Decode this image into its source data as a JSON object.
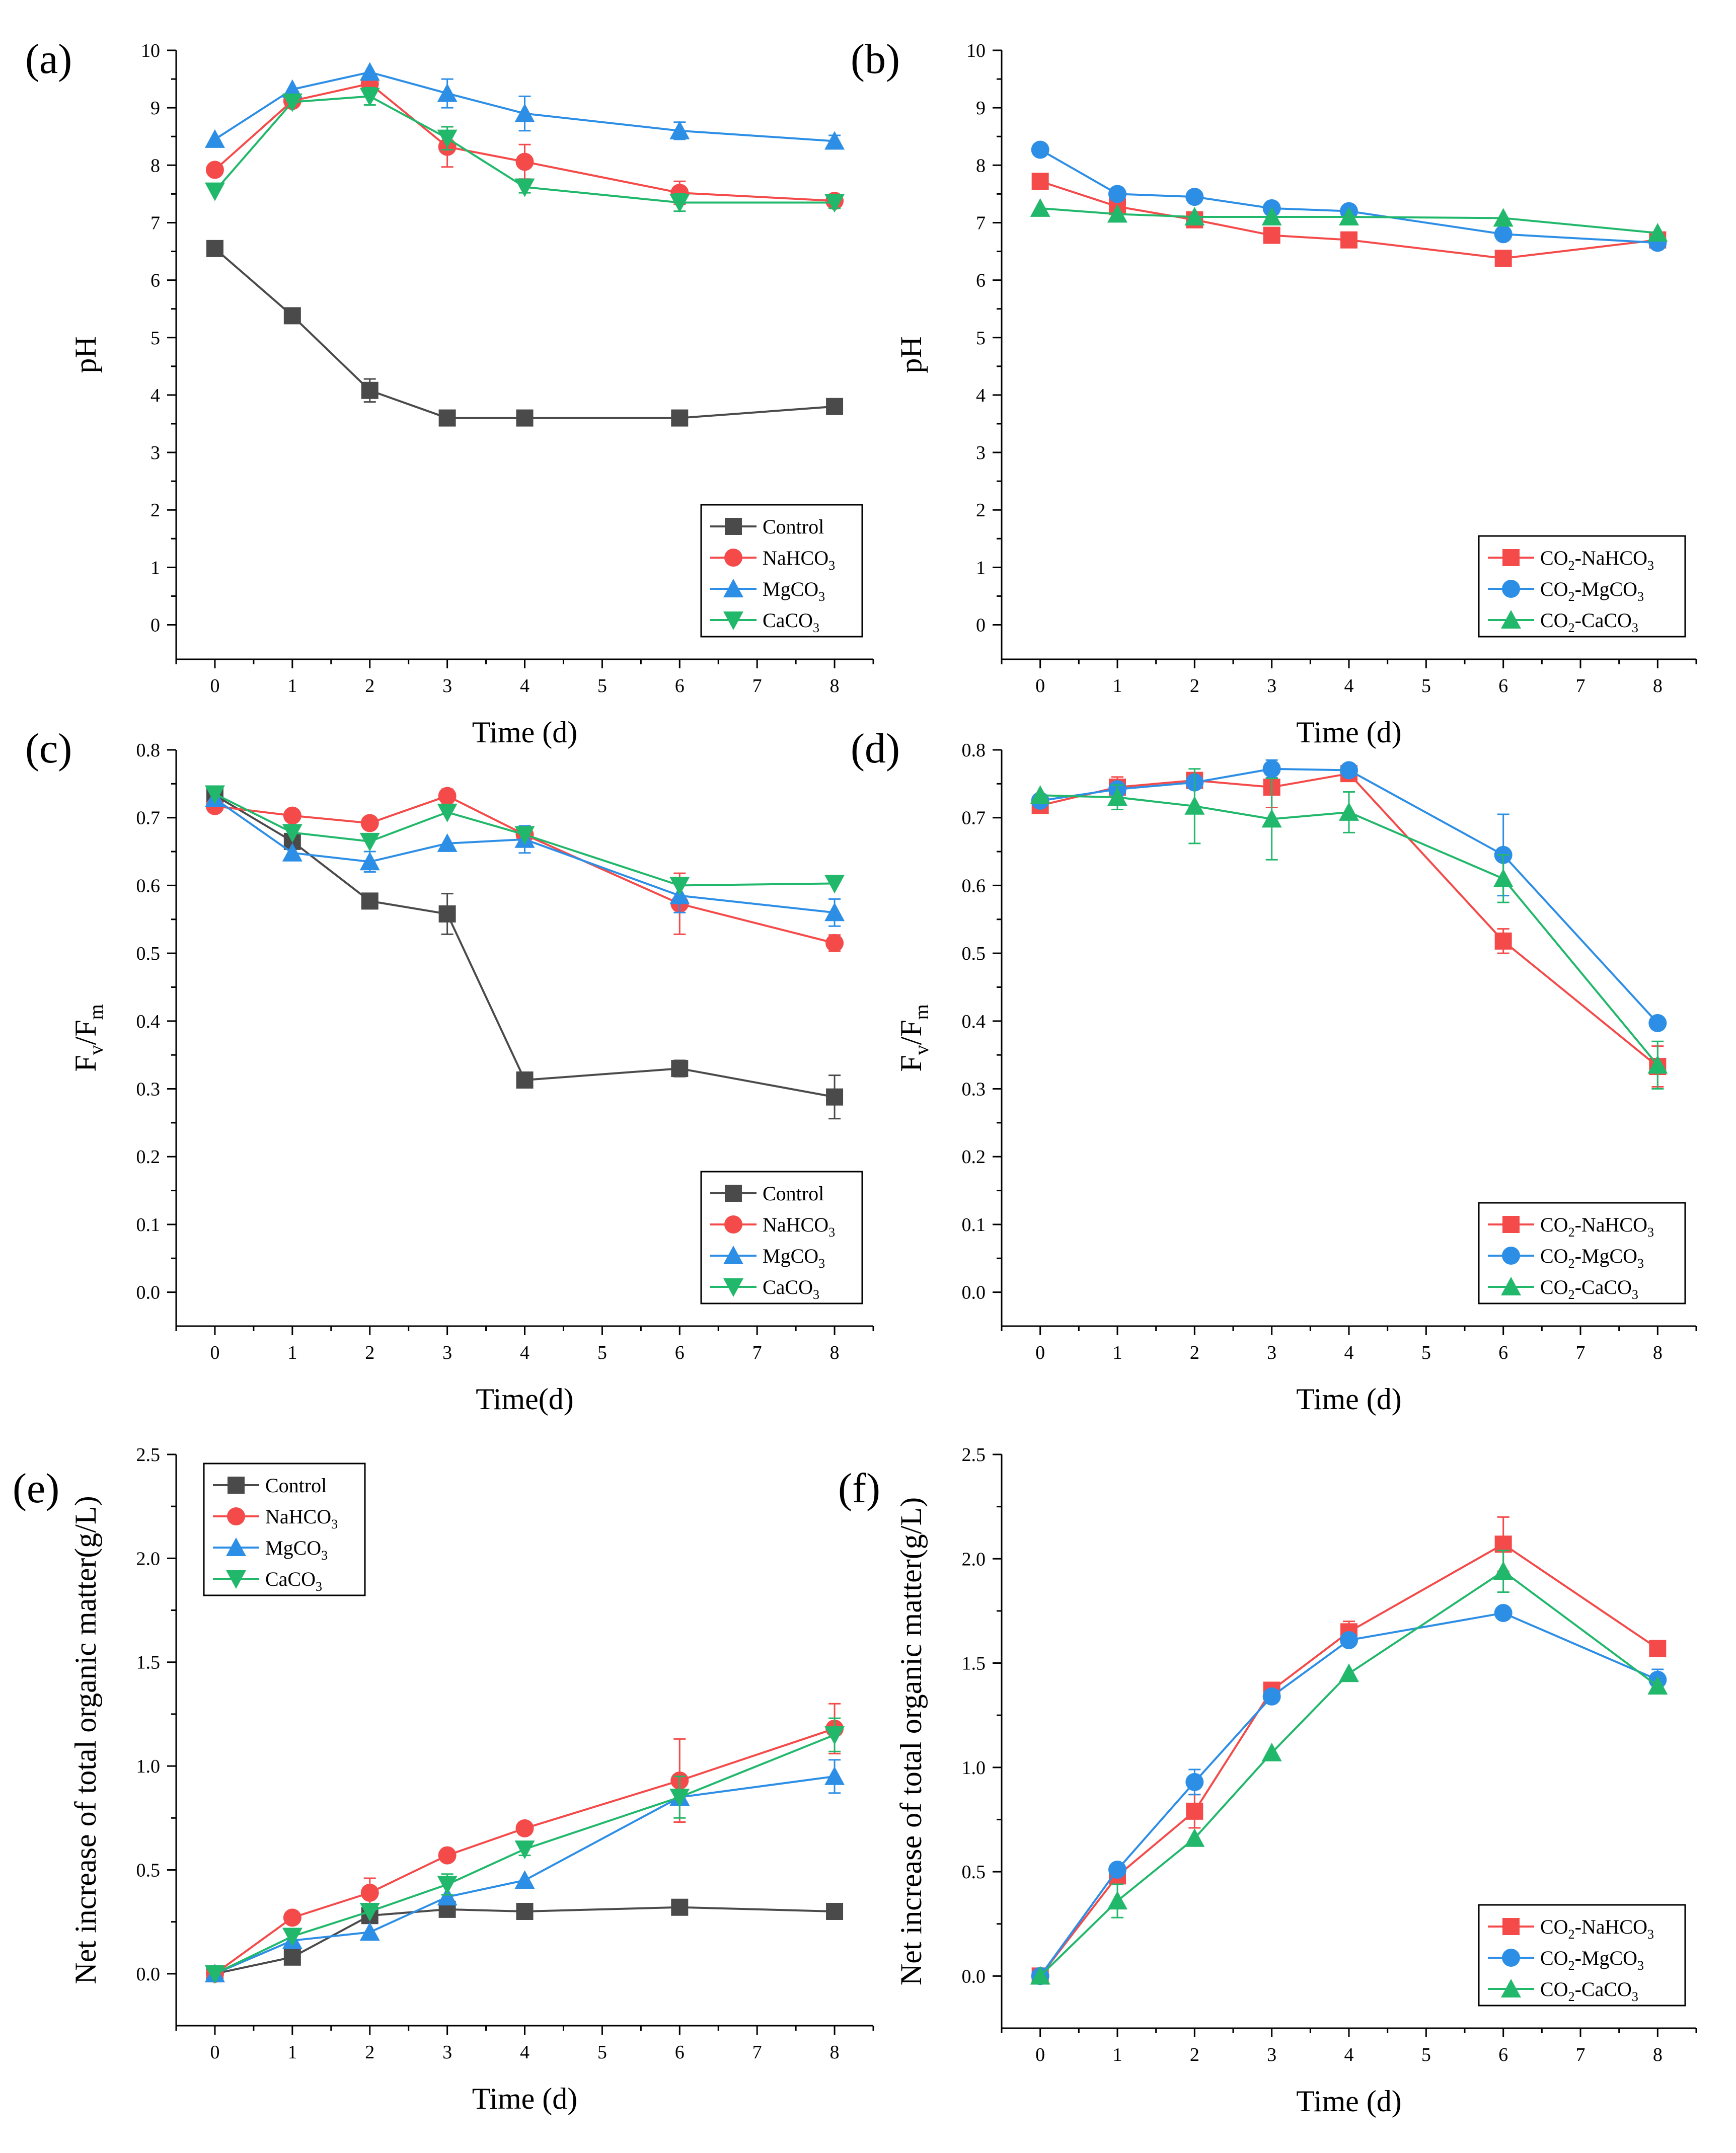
{
  "figure": {
    "colors": {
      "black": "#4a4a4a",
      "red": "#f44a4a",
      "blue": "#2d8ee6",
      "green": "#22b86b"
    }
  },
  "chart_data": [
    {
      "id": "a",
      "panel_label": "(a)",
      "type": "line",
      "xlabel": "Time (d)",
      "ylabel": "pH",
      "xlim": [
        -0.5,
        8.5
      ],
      "ylim": [
        -0.6,
        10
      ],
      "yticks": [
        0,
        1,
        2,
        3,
        4,
        5,
        6,
        7,
        8,
        9,
        10
      ],
      "ytick_decimals": 0,
      "xticks": [
        0,
        1,
        2,
        3,
        4,
        5,
        6,
        7,
        8
      ],
      "legend_position": "bottom-right",
      "x": [
        0,
        1,
        2,
        3,
        4,
        6,
        8
      ],
      "series": [
        {
          "name": "Control",
          "sub": "",
          "color": "#4a4a4a",
          "marker": "square",
          "values": [
            6.55,
            5.38,
            4.08,
            3.6,
            3.6,
            3.6,
            3.8
          ],
          "errors": [
            0,
            0,
            0.2,
            0,
            0,
            0,
            0
          ]
        },
        {
          "name": "NaHCO",
          "sub": "3",
          "color": "#f44a4a",
          "marker": "circle",
          "values": [
            7.92,
            9.12,
            9.42,
            8.32,
            8.06,
            7.52,
            7.38
          ],
          "errors": [
            0,
            0,
            0.15,
            0.35,
            0.3,
            0.2,
            0.1
          ]
        },
        {
          "name": "MgCO",
          "sub": "3",
          "color": "#2d8ee6",
          "marker": "triangle-up",
          "values": [
            8.45,
            9.32,
            9.62,
            9.25,
            8.9,
            8.6,
            8.42
          ],
          "errors": [
            0,
            0,
            0,
            0.25,
            0.3,
            0.15,
            0.1
          ]
        },
        {
          "name": "CaCO",
          "sub": "3",
          "color": "#22b86b",
          "marker": "triangle-down",
          "values": [
            7.55,
            9.1,
            9.2,
            8.47,
            7.62,
            7.35,
            7.35
          ],
          "errors": [
            0,
            0,
            0.15,
            0.2,
            0.1,
            0.15,
            0.1
          ]
        }
      ]
    },
    {
      "id": "b",
      "panel_label": "(b)",
      "type": "line",
      "xlabel": "Time (d)",
      "ylabel": "pH",
      "xlim": [
        -0.5,
        8.5
      ],
      "ylim": [
        -0.6,
        10
      ],
      "yticks": [
        0,
        1,
        2,
        3,
        4,
        5,
        6,
        7,
        8,
        9,
        10
      ],
      "ytick_decimals": 0,
      "xticks": [
        0,
        1,
        2,
        3,
        4,
        5,
        6,
        7,
        8
      ],
      "legend_position": "bottom-right",
      "x": [
        0,
        1,
        2,
        3,
        4,
        6,
        8
      ],
      "series": [
        {
          "name": "CO",
          "sub": "2",
          "name2": "-NaHCO",
          "sub2": "3",
          "color": "#f44a4a",
          "marker": "square",
          "values": [
            7.72,
            7.28,
            7.05,
            6.78,
            6.7,
            6.38,
            6.7
          ],
          "errors": [
            0,
            0,
            0,
            0,
            0,
            0,
            0
          ]
        },
        {
          "name": "CO",
          "sub": "2",
          "name2": "-MgCO",
          "sub2": "3",
          "color": "#2d8ee6",
          "marker": "circle",
          "values": [
            8.27,
            7.5,
            7.45,
            7.25,
            7.2,
            6.8,
            6.65
          ],
          "errors": [
            0,
            0,
            0,
            0,
            0,
            0,
            0
          ]
        },
        {
          "name": "CO",
          "sub": "2",
          "name2": "-CaCO",
          "sub2": "3",
          "color": "#22b86b",
          "marker": "triangle-up",
          "values": [
            7.25,
            7.15,
            7.1,
            7.1,
            7.1,
            7.08,
            6.82
          ],
          "errors": [
            0,
            0,
            0,
            0,
            0,
            0,
            0
          ]
        }
      ]
    },
    {
      "id": "c",
      "panel_label": "(c)",
      "type": "line",
      "xlabel": "Time(d)",
      "ylabel": "F",
      "ylabel_sub": "v",
      "ylabel2": "/F",
      "ylabel_sub2": "m",
      "xlim": [
        -0.5,
        8.5
      ],
      "ylim": [
        -0.05,
        0.8
      ],
      "yticks": [
        0,
        0.1,
        0.2,
        0.3,
        0.4,
        0.5,
        0.6,
        0.7,
        0.8
      ],
      "ytick_decimals": 1,
      "xticks": [
        0,
        1,
        2,
        3,
        4,
        5,
        6,
        7,
        8
      ],
      "legend_position": "bottom-right",
      "x": [
        0,
        1,
        2,
        3,
        4,
        6,
        8
      ],
      "series": [
        {
          "name": "Control",
          "sub": "",
          "color": "#4a4a4a",
          "marker": "square",
          "values": [
            0.733,
            0.665,
            0.577,
            0.558,
            0.313,
            0.33,
            0.288
          ],
          "errors": [
            0,
            0,
            0.008,
            0.03,
            0,
            0.012,
            0.032
          ]
        },
        {
          "name": "NaHCO",
          "sub": "3",
          "color": "#f44a4a",
          "marker": "circle",
          "values": [
            0.717,
            0.703,
            0.692,
            0.732,
            0.675,
            0.573,
            0.515
          ],
          "errors": [
            0,
            0,
            0,
            0.01,
            0,
            0.045,
            0.012
          ]
        },
        {
          "name": "MgCO",
          "sub": "3",
          "color": "#2d8ee6",
          "marker": "triangle-up",
          "values": [
            0.728,
            0.648,
            0.635,
            0.662,
            0.668,
            0.585,
            0.56
          ],
          "errors": [
            0,
            0,
            0.015,
            0,
            0.02,
            0.025,
            0.02
          ]
        },
        {
          "name": "CaCO",
          "sub": "3",
          "color": "#22b86b",
          "marker": "triangle-down",
          "values": [
            0.735,
            0.678,
            0.665,
            0.708,
            0.675,
            0.6,
            0.603
          ],
          "errors": [
            0,
            0,
            0,
            0,
            0,
            0,
            0
          ]
        }
      ]
    },
    {
      "id": "d",
      "panel_label": "(d)",
      "type": "line",
      "xlabel": "Time (d)",
      "ylabel": "F",
      "ylabel_sub": "v",
      "ylabel2": "/F",
      "ylabel_sub2": "m",
      "xlim": [
        -0.5,
        8.5
      ],
      "ylim": [
        -0.05,
        0.8
      ],
      "yticks": [
        0,
        0.1,
        0.2,
        0.3,
        0.4,
        0.5,
        0.6,
        0.7,
        0.8
      ],
      "ytick_decimals": 1,
      "xticks": [
        0,
        1,
        2,
        3,
        4,
        5,
        6,
        7,
        8
      ],
      "legend_position": "bottom-right",
      "x": [
        0,
        1,
        2,
        3,
        4,
        6,
        8
      ],
      "series": [
        {
          "name": "CO",
          "sub": "2",
          "name2": "-NaHCO",
          "sub2": "3",
          "color": "#f44a4a",
          "marker": "square",
          "values": [
            0.718,
            0.745,
            0.755,
            0.745,
            0.765,
            0.518,
            0.333
          ],
          "errors": [
            0,
            0.015,
            0.008,
            0.03,
            0.008,
            0.018,
            0.03
          ]
        },
        {
          "name": "CO",
          "sub": "2",
          "name2": "-MgCO",
          "sub2": "3",
          "color": "#2d8ee6",
          "marker": "circle",
          "values": [
            0.725,
            0.742,
            0.752,
            0.772,
            0.77,
            0.645,
            0.397
          ],
          "errors": [
            0,
            0,
            0,
            0.013,
            0.008,
            0.06,
            0.008
          ]
        },
        {
          "name": "CO",
          "sub": "2",
          "name2": "-CaCO",
          "sub2": "3",
          "color": "#22b86b",
          "marker": "triangle-up",
          "values": [
            0.733,
            0.73,
            0.717,
            0.698,
            0.708,
            0.61,
            0.335
          ],
          "errors": [
            0,
            0.018,
            0.055,
            0.06,
            0.03,
            0.035,
            0.035
          ]
        }
      ]
    },
    {
      "id": "e",
      "panel_label": "(e)",
      "type": "line",
      "xlabel": "Time (d)",
      "ylabel": "Net increase of total organic matter(g/L)",
      "xlim": [
        -0.5,
        8.5
      ],
      "ylim": [
        -0.25,
        2.5
      ],
      "yticks": [
        0,
        0.5,
        1,
        1.5,
        2,
        2.5
      ],
      "ytick_decimals": 1,
      "xticks": [
        0,
        1,
        2,
        3,
        4,
        5,
        6,
        7,
        8
      ],
      "legend_position": "top-left",
      "x": [
        0,
        1,
        2,
        3,
        4,
        6,
        8
      ],
      "series": [
        {
          "name": "Control",
          "sub": "",
          "color": "#4a4a4a",
          "marker": "square",
          "values": [
            0,
            0.08,
            0.28,
            0.31,
            0.3,
            0.32,
            0.3
          ],
          "errors": [
            0,
            0,
            0,
            0,
            0,
            0,
            0
          ]
        },
        {
          "name": "NaHCO",
          "sub": "3",
          "color": "#f44a4a",
          "marker": "circle",
          "values": [
            0,
            0.27,
            0.39,
            0.57,
            0.7,
            0.93,
            1.18
          ],
          "errors": [
            0,
            0,
            0.07,
            0,
            0.03,
            0.2,
            0.12
          ]
        },
        {
          "name": "MgCO",
          "sub": "3",
          "color": "#2d8ee6",
          "marker": "triangle-up",
          "values": [
            0,
            0.16,
            0.2,
            0.37,
            0.45,
            0.85,
            0.95
          ],
          "errors": [
            0,
            0,
            0,
            0,
            0,
            0,
            0.08
          ]
        },
        {
          "name": "CaCO",
          "sub": "3",
          "color": "#22b86b",
          "marker": "triangle-down",
          "values": [
            0,
            0.18,
            0.3,
            0.43,
            0.6,
            0.85,
            1.15
          ],
          "errors": [
            0,
            0,
            0,
            0.05,
            0.03,
            0.1,
            0.08
          ]
        }
      ]
    },
    {
      "id": "f",
      "panel_label": "(f)",
      "type": "line",
      "xlabel": "Time (d)",
      "ylabel": "Net increase of total organic matter(g/L)",
      "xlim": [
        -0.5,
        8.5
      ],
      "ylim": [
        -0.25,
        2.5
      ],
      "yticks": [
        0,
        0.5,
        1,
        1.5,
        2,
        2.5
      ],
      "ytick_decimals": 1,
      "xticks": [
        0,
        1,
        2,
        3,
        4,
        5,
        6,
        7,
        8
      ],
      "legend_position": "bottom-right",
      "x": [
        0,
        1,
        2,
        3,
        4,
        6,
        8
      ],
      "series": [
        {
          "name": "CO",
          "sub": "2",
          "name2": "-NaHCO",
          "sub2": "3",
          "color": "#f44a4a",
          "marker": "square",
          "values": [
            0,
            0.48,
            0.79,
            1.37,
            1.65,
            2.07,
            1.57
          ],
          "errors": [
            0,
            0,
            0.08,
            0.03,
            0.05,
            0.13,
            0.03
          ]
        },
        {
          "name": "CO",
          "sub": "2",
          "name2": "-MgCO",
          "sub2": "3",
          "color": "#2d8ee6",
          "marker": "circle",
          "values": [
            0,
            0.51,
            0.93,
            1.34,
            1.61,
            1.74,
            1.42
          ],
          "errors": [
            0,
            0,
            0.06,
            0,
            0,
            0,
            0.05
          ]
        },
        {
          "name": "CO",
          "sub": "2",
          "name2": "-CaCO",
          "sub2": "3",
          "color": "#22b86b",
          "marker": "triangle-up",
          "values": [
            0,
            0.36,
            0.66,
            1.07,
            1.45,
            1.94,
            1.39
          ],
          "errors": [
            0,
            0.08,
            0,
            0,
            0,
            0.1,
            0
          ]
        }
      ]
    }
  ]
}
